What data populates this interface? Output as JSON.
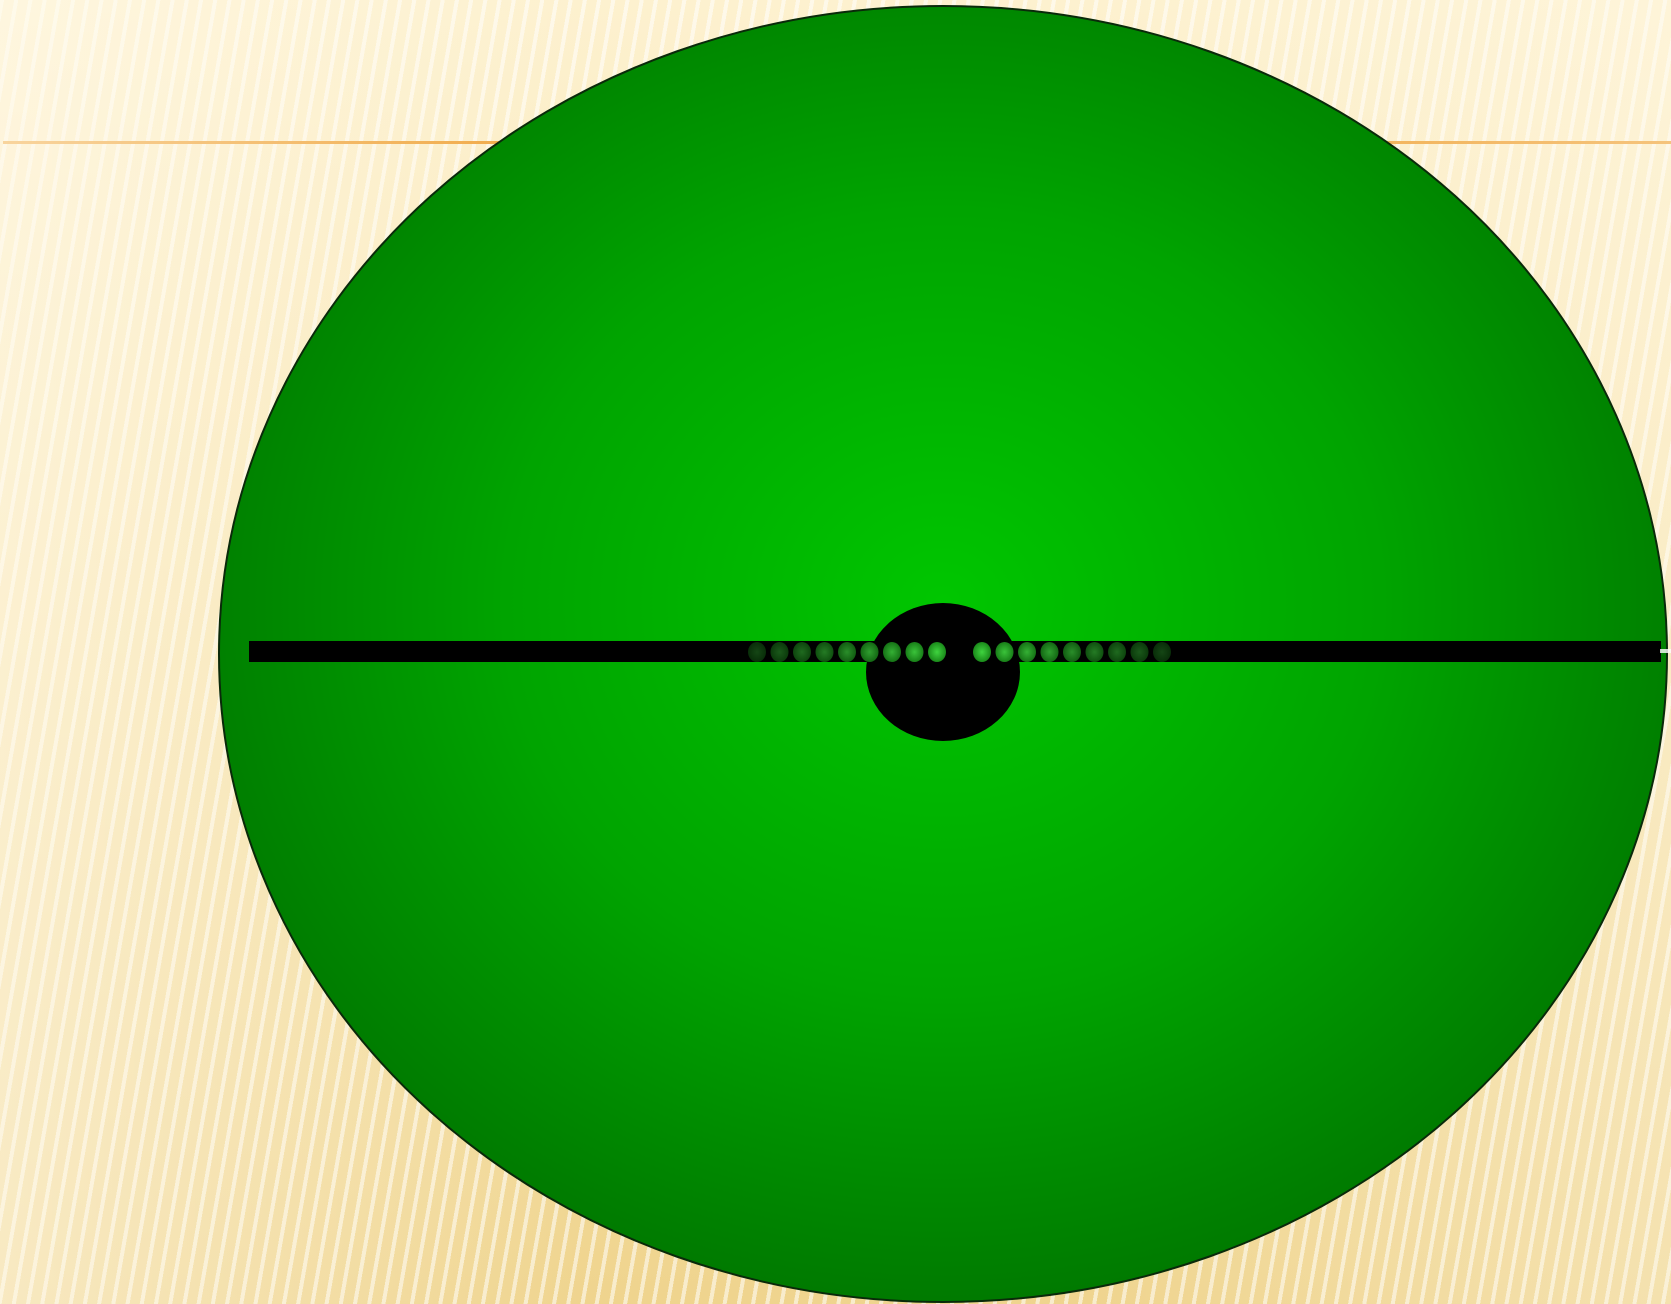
{
  "colors": {
    "background_light": "#fdf1cf",
    "background_dark": "#efd48e",
    "title_rule": "#f0a640",
    "cell_center": "#00c200",
    "cell_edge": "#007a00",
    "plate": "#000000",
    "vesicle": "#2fc62f"
  },
  "diagram": {
    "description_elements": [
      "cell-body",
      "cell-plate",
      "nucleus",
      "vesicles"
    ],
    "vesicles_left_count": 9,
    "vesicles_right_count": 9
  }
}
